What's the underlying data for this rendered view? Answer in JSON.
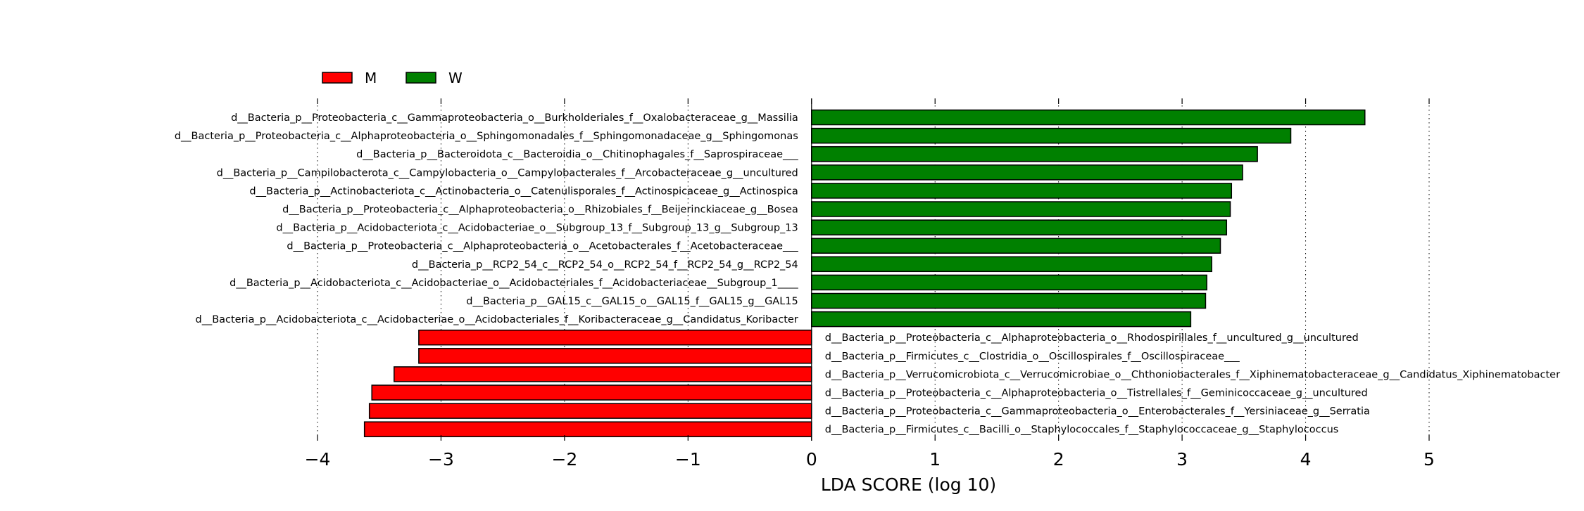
{
  "chart_data": {
    "type": "bar",
    "orientation": "horizontal",
    "xlabel": "LDA SCORE (log 10)",
    "xlim": [
      -4,
      5
    ],
    "x_ticks": [
      -4,
      -3,
      -2,
      -1,
      0,
      1,
      2,
      3,
      4,
      5
    ],
    "x_tick_labels": [
      "−4",
      "−3",
      "−2",
      "−1",
      "0",
      "1",
      "2",
      "3",
      "4",
      "5"
    ],
    "grid": "vertical dotted",
    "legend_placement": "top-left",
    "legend": [
      {
        "name": "M",
        "color": "#ff0000"
      },
      {
        "name": "W",
        "color": "#008000"
      }
    ],
    "bars": [
      {
        "label": "d__Bacteria_p__Proteobacteria_c__Gammaproteobacteria_o__Burkholderiales_f__Oxalobacteraceae_g__Massilia",
        "value": 4.48,
        "group": "W"
      },
      {
        "label": "d__Bacteria_p__Proteobacteria_c__Alphaproteobacteria_o__Sphingomonadales_f__Sphingomonadaceae_g__Sphingomonas",
        "value": 3.88,
        "group": "W"
      },
      {
        "label": "d__Bacteria_p__Bacteroidota_c__Bacteroidia_o__Chitinophagales_f__Saprospiraceae___",
        "value": 3.61,
        "group": "W"
      },
      {
        "label": "d__Bacteria_p__Campilobacterota_c__Campylobacteria_o__Campylobacterales_f__Arcobacteraceae_g__uncultured",
        "value": 3.49,
        "group": "W"
      },
      {
        "label": "d__Bacteria_p__Actinobacteriota_c__Actinobacteria_o__Catenulisporales_f__Actinospicaceae_g__Actinospica",
        "value": 3.4,
        "group": "W"
      },
      {
        "label": "d__Bacteria_p__Proteobacteria_c__Alphaproteobacteria_o__Rhizobiales_f__Beijerinckiaceae_g__Bosea",
        "value": 3.39,
        "group": "W"
      },
      {
        "label": "d__Bacteria_p__Acidobacteriota_c__Acidobacteriae_o__Subgroup_13_f__Subgroup_13_g__Subgroup_13",
        "value": 3.36,
        "group": "W"
      },
      {
        "label": "d__Bacteria_p__Proteobacteria_c__Alphaproteobacteria_o__Acetobacterales_f__Acetobacteraceae___",
        "value": 3.31,
        "group": "W"
      },
      {
        "label": "d__Bacteria_p__RCP2_54_c__RCP2_54_o__RCP2_54_f__RCP2_54_g__RCP2_54",
        "value": 3.24,
        "group": "W"
      },
      {
        "label": "d__Bacteria_p__Acidobacteriota_c__Acidobacteriae_o__Acidobacteriales_f__Acidobacteriaceae__Subgroup_1____",
        "value": 3.2,
        "group": "W"
      },
      {
        "label": "d__Bacteria_p__GAL15_c__GAL15_o__GAL15_f__GAL15_g__GAL15",
        "value": 3.19,
        "group": "W"
      },
      {
        "label": "d__Bacteria_p__Acidobacteriota_c__Acidobacteriae_o__Acidobacteriales_f__Koribacteraceae_g__Candidatus_Koribacter",
        "value": 3.07,
        "group": "W"
      },
      {
        "label": "d__Bacteria_p__Proteobacteria_c__Alphaproteobacteria_o__Rhodospirillales_f__uncultured_g__uncultured",
        "value": -3.18,
        "group": "M"
      },
      {
        "label": "d__Bacteria_p__Firmicutes_c__Clostridia_o__Oscillospirales_f__Oscillospiraceae___",
        "value": -3.18,
        "group": "M"
      },
      {
        "label": "d__Bacteria_p__Verrucomicrobiota_c__Verrucomicrobiae_o__Chthoniobacterales_f__Xiphinematobacteraceae_g__Candidatus_Xiphinematobacter",
        "value": -3.38,
        "group": "M"
      },
      {
        "label": "d__Bacteria_p__Proteobacteria_c__Alphaproteobacteria_o__Tistrellales_f__Geminicoccaceae_g__uncultured",
        "value": -3.56,
        "group": "M"
      },
      {
        "label": "d__Bacteria_p__Proteobacteria_c__Gammaproteobacteria_o__Enterobacterales_f__Yersiniaceae_g__Serratia",
        "value": -3.58,
        "group": "M"
      },
      {
        "label": "d__Bacteria_p__Firmicutes_c__Bacilli_o__Staphylococcales_f__Staphylococcaceae_g__Staphylococcus",
        "value": -3.62,
        "group": "M"
      }
    ]
  }
}
